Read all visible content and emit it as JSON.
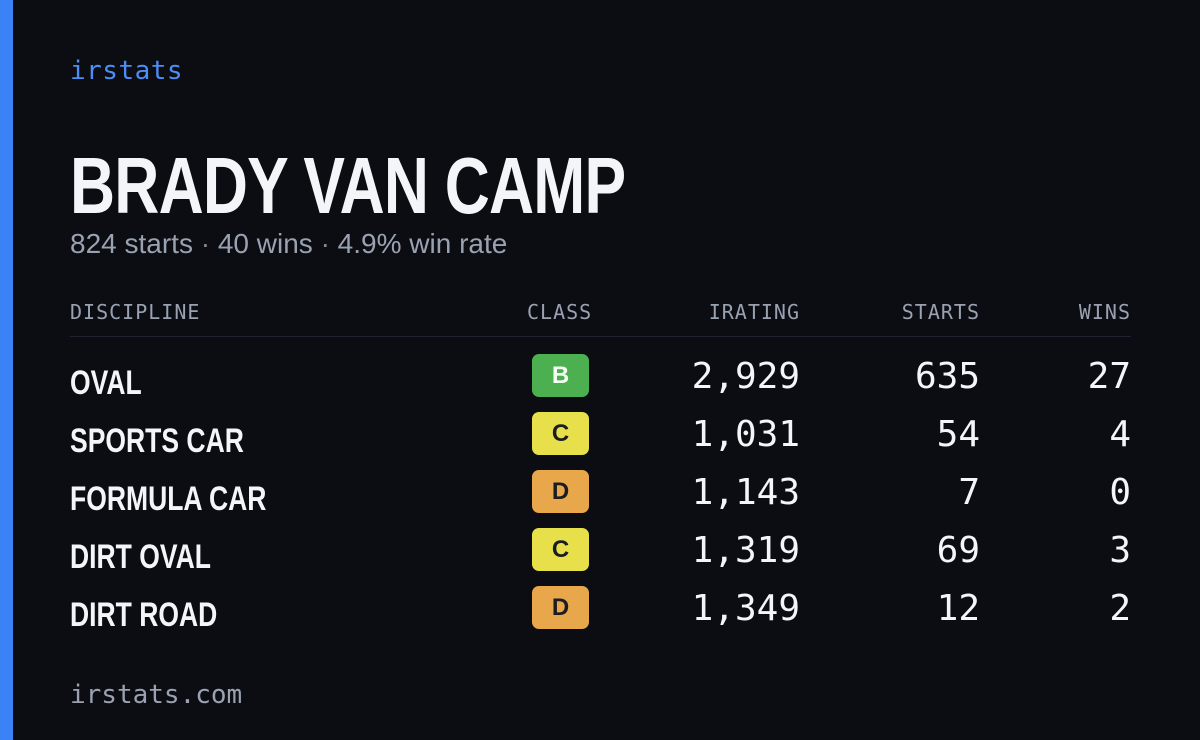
{
  "brand": "irstats",
  "driver": {
    "name": "BRADY VAN CAMP",
    "starts_text": "824 starts",
    "wins_text": "40 wins",
    "win_rate_text": "4.9% win rate",
    "separator": "·"
  },
  "table": {
    "headers": {
      "discipline": "DISCIPLINE",
      "class": "CLASS",
      "irating": "IRATING",
      "starts": "STARTS",
      "wins": "WINS"
    },
    "rows": [
      {
        "discipline": "OVAL",
        "class": "B",
        "class_color": "#4caf50",
        "irating": "2,929",
        "starts": "635",
        "wins": "27"
      },
      {
        "discipline": "SPORTS CAR",
        "class": "C",
        "class_color": "#e8e04b",
        "irating": "1,031",
        "starts": "54",
        "wins": "4"
      },
      {
        "discipline": "FORMULA CAR",
        "class": "D",
        "class_color": "#e8a74b",
        "irating": "1,143",
        "starts": "7",
        "wins": "0"
      },
      {
        "discipline": "DIRT OVAL",
        "class": "C",
        "class_color": "#e8e04b",
        "irating": "1,319",
        "starts": "69",
        "wins": "3"
      },
      {
        "discipline": "DIRT ROAD",
        "class": "D",
        "class_color": "#e8a74b",
        "irating": "1,349",
        "starts": "12",
        "wins": "2"
      }
    ]
  },
  "footer": "irstats.com",
  "colors": {
    "accent": "#3b82f6",
    "background": "#0b0d13",
    "text_primary": "#f4f5f8",
    "text_muted": "#9aa2b1"
  }
}
